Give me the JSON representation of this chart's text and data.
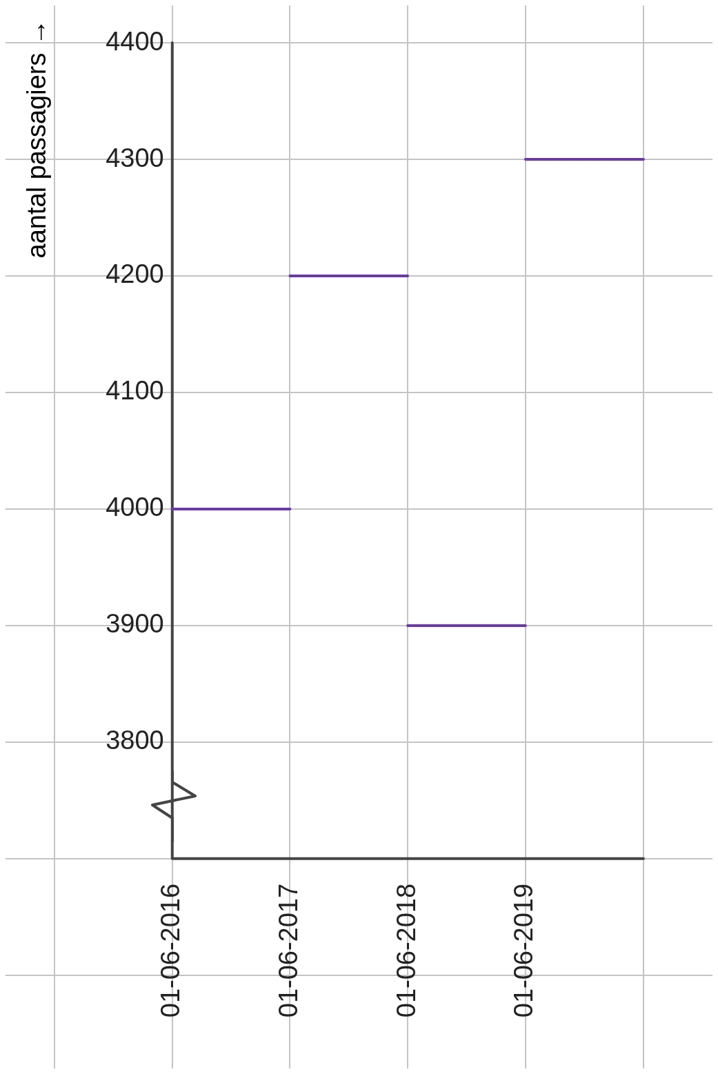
{
  "chart_data": {
    "type": "line",
    "ylabel": "aantal passagiers →",
    "series": [
      {
        "color": "#6a3aa8",
        "x": [
          "2016-06-01",
          "2017-06-01"
        ],
        "values": [
          4000,
          4000
        ]
      },
      {
        "color": "#6a3aa8",
        "x": [
          "2017-06-01",
          "2018-06-01"
        ],
        "values": [
          4200,
          4200
        ]
      },
      {
        "color": "#6a3aa8",
        "x": [
          "2018-06-01",
          "2019-06-01"
        ],
        "values": [
          3900,
          3900
        ]
      },
      {
        "color": "#6a3aa8",
        "x": [
          "2019-06-01",
          "2020-06-01"
        ],
        "values": [
          4300,
          4300
        ]
      }
    ],
    "xlim": [
      "2015-01-01",
      "2021-01-01"
    ],
    "xticks": [
      {
        "value": "2015-06-01",
        "label": null
      },
      {
        "value": "2016-06-01",
        "label": "01-06-2016"
      },
      {
        "value": "2017-06-01",
        "label": "01-06-2017"
      },
      {
        "value": "2018-06-01",
        "label": "01-06-2018"
      },
      {
        "value": "2019-06-01",
        "label": "01-06-2019"
      },
      {
        "value": "2020-06-01",
        "label": null
      }
    ],
    "ylim": [
      3520,
      4432
    ],
    "yticks": [
      {
        "value": 3600,
        "label": null
      },
      {
        "value": 3700,
        "label": null
      },
      3800,
      3900,
      4000,
      4100,
      4200,
      4300,
      4400
    ],
    "grid": true,
    "legend": false,
    "marker": "none",
    "line_style": "solid"
  }
}
